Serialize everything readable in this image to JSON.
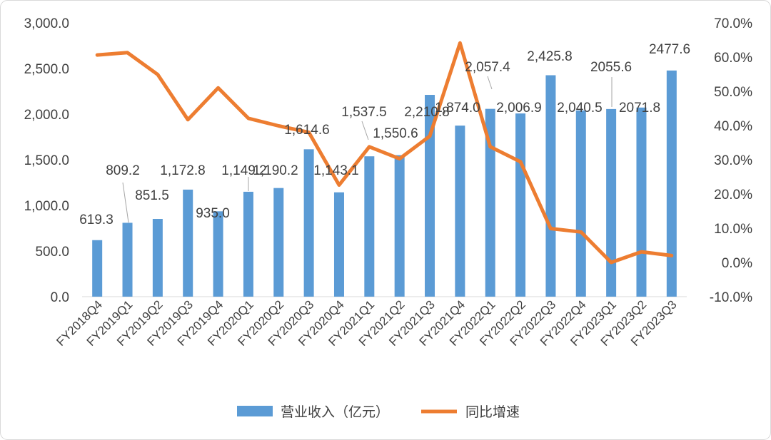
{
  "chart_data": {
    "type": "bar",
    "categories": [
      "FY2018Q4",
      "FY2019Q1",
      "FY2019Q2",
      "FY2019Q3",
      "FY2019Q4",
      "FY2020Q1",
      "FY2020Q2",
      "FY2020Q3",
      "FY2020Q4",
      "FY2021Q1",
      "FY2021Q2",
      "FY2021Q3",
      "FY2021Q4",
      "FY2022Q1",
      "FY2022Q2",
      "FY2022Q3",
      "FY2022Q4",
      "FY2023Q1",
      "FY2023Q2",
      "FY2023Q3"
    ],
    "series": [
      {
        "name": "营业收入（亿元）",
        "type": "bar",
        "axis": "left",
        "color": "#5b9bd5",
        "values": [
          619.3,
          809.2,
          851.5,
          1172.8,
          935.0,
          1149.2,
          1190.2,
          1614.6,
          1143.1,
          1537.5,
          1550.6,
          2210.8,
          1874.0,
          2057.4,
          2006.9,
          2425.8,
          2040.5,
          2055.6,
          2071.8,
          2477.6
        ],
        "labels": [
          "619.3",
          "809.2",
          "851.5",
          "1,172.8",
          "935.0",
          "1,149.2",
          "1,190.2",
          "1,614.6",
          "1,143.1",
          "1,537.5",
          "1,550.6",
          "2,210.8",
          "1,874.0",
          "2,057.4",
          "2,006.9",
          "2,425.8",
          "2,040.5",
          "2055.6",
          "2071.8",
          "2477.6"
        ]
      },
      {
        "name": "同比增速",
        "type": "line",
        "axis": "right",
        "color": "#ed7d31",
        "values": [
          60.6,
          61.3,
          54.9,
          41.7,
          51.0,
          42.1,
          39.9,
          38.0,
          22.6,
          33.8,
          30.3,
          36.9,
          64.1,
          33.8,
          29.4,
          9.9,
          8.9,
          0.0,
          3.1,
          2.0
        ]
      }
    ],
    "y_left": {
      "min": 0,
      "max": 3000,
      "ticks": [
        "0.0",
        "500.0",
        "1,000.0",
        "1,500.0",
        "2,000.0",
        "2,500.0",
        "3,000.0"
      ]
    },
    "y_right": {
      "min": -10,
      "max": 70,
      "ticks": [
        "-10.0%",
        "0.0%",
        "10.0%",
        "20.0%",
        "30.0%",
        "40.0%",
        "50.0%",
        "60.0%",
        "70.0%"
      ]
    },
    "grid": false,
    "legend_position": "bottom"
  }
}
